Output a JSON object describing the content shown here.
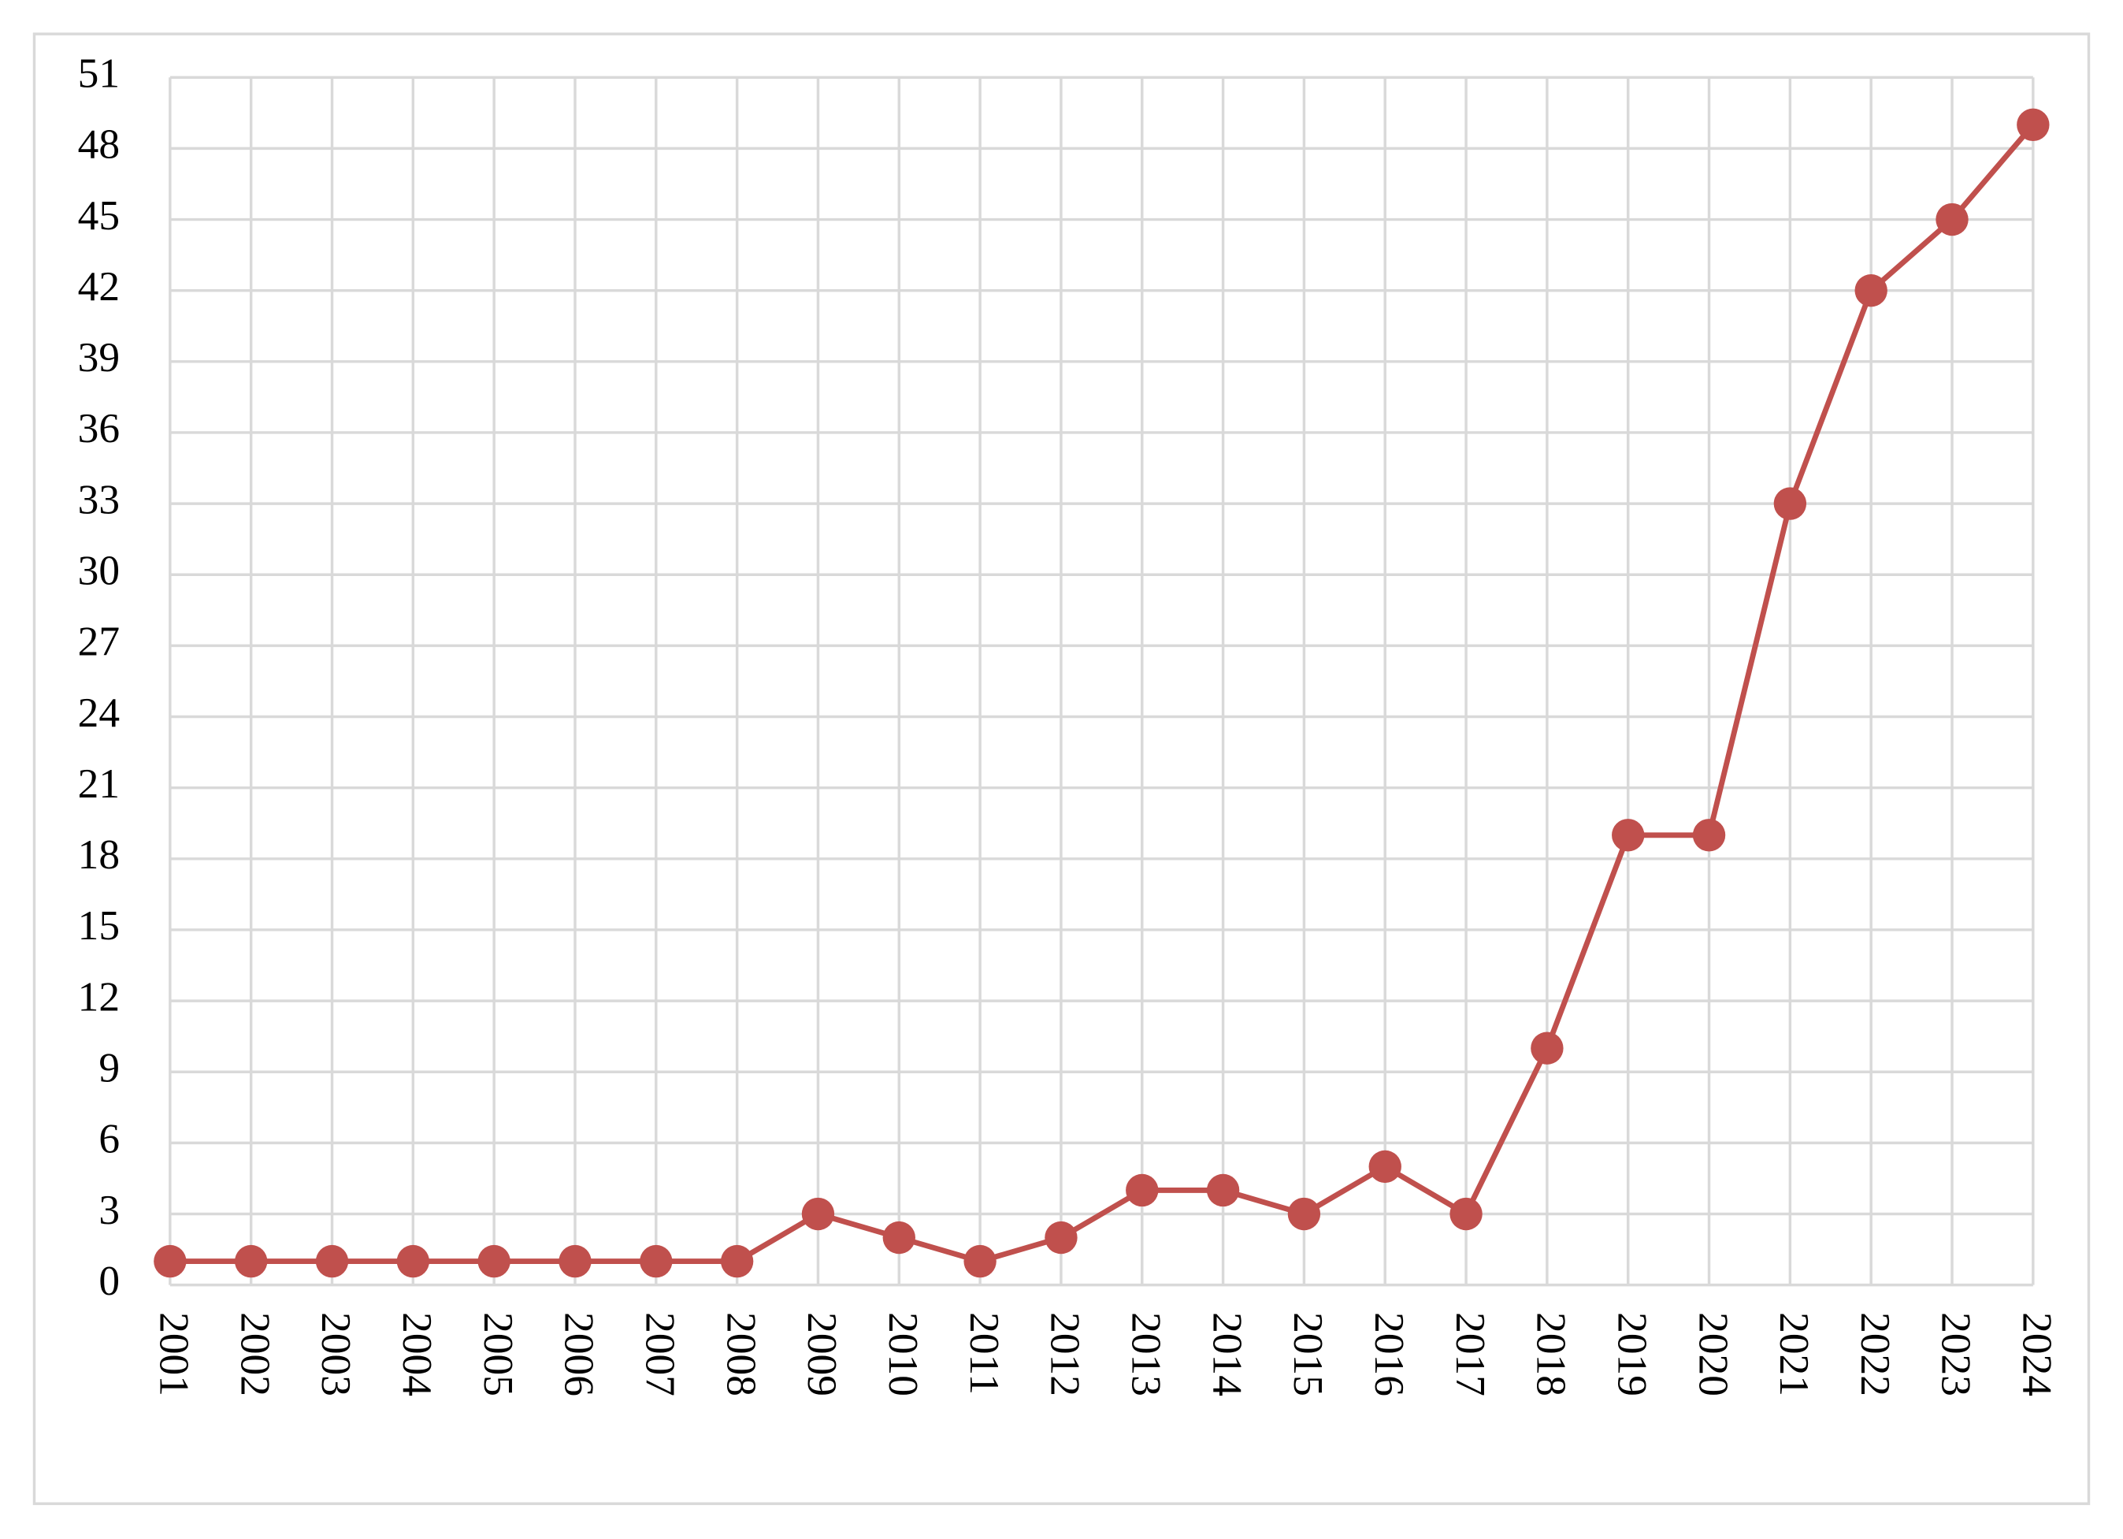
{
  "chart_data": {
    "type": "line",
    "categories": [
      "2001",
      "2002",
      "2003",
      "2004",
      "2005",
      "2006",
      "2007",
      "2008",
      "2009",
      "2010",
      "2011",
      "2012",
      "2013",
      "2014",
      "2015",
      "2016",
      "2017",
      "2018",
      "2019",
      "2020",
      "2021",
      "2022",
      "2023",
      "2024"
    ],
    "series": [
      {
        "color": "#c0504d",
        "values": [
          1,
          1,
          1,
          1,
          1,
          1,
          1,
          1,
          3,
          2,
          1,
          2,
          4,
          4,
          3,
          5,
          3,
          10,
          19,
          19,
          33,
          42,
          45,
          49
        ]
      }
    ],
    "ylim": [
      0,
      51
    ],
    "yticks": [
      0,
      3,
      6,
      9,
      12,
      15,
      18,
      21,
      24,
      27,
      30,
      33,
      36,
      39,
      42,
      45,
      48,
      51
    ],
    "grid": true
  }
}
